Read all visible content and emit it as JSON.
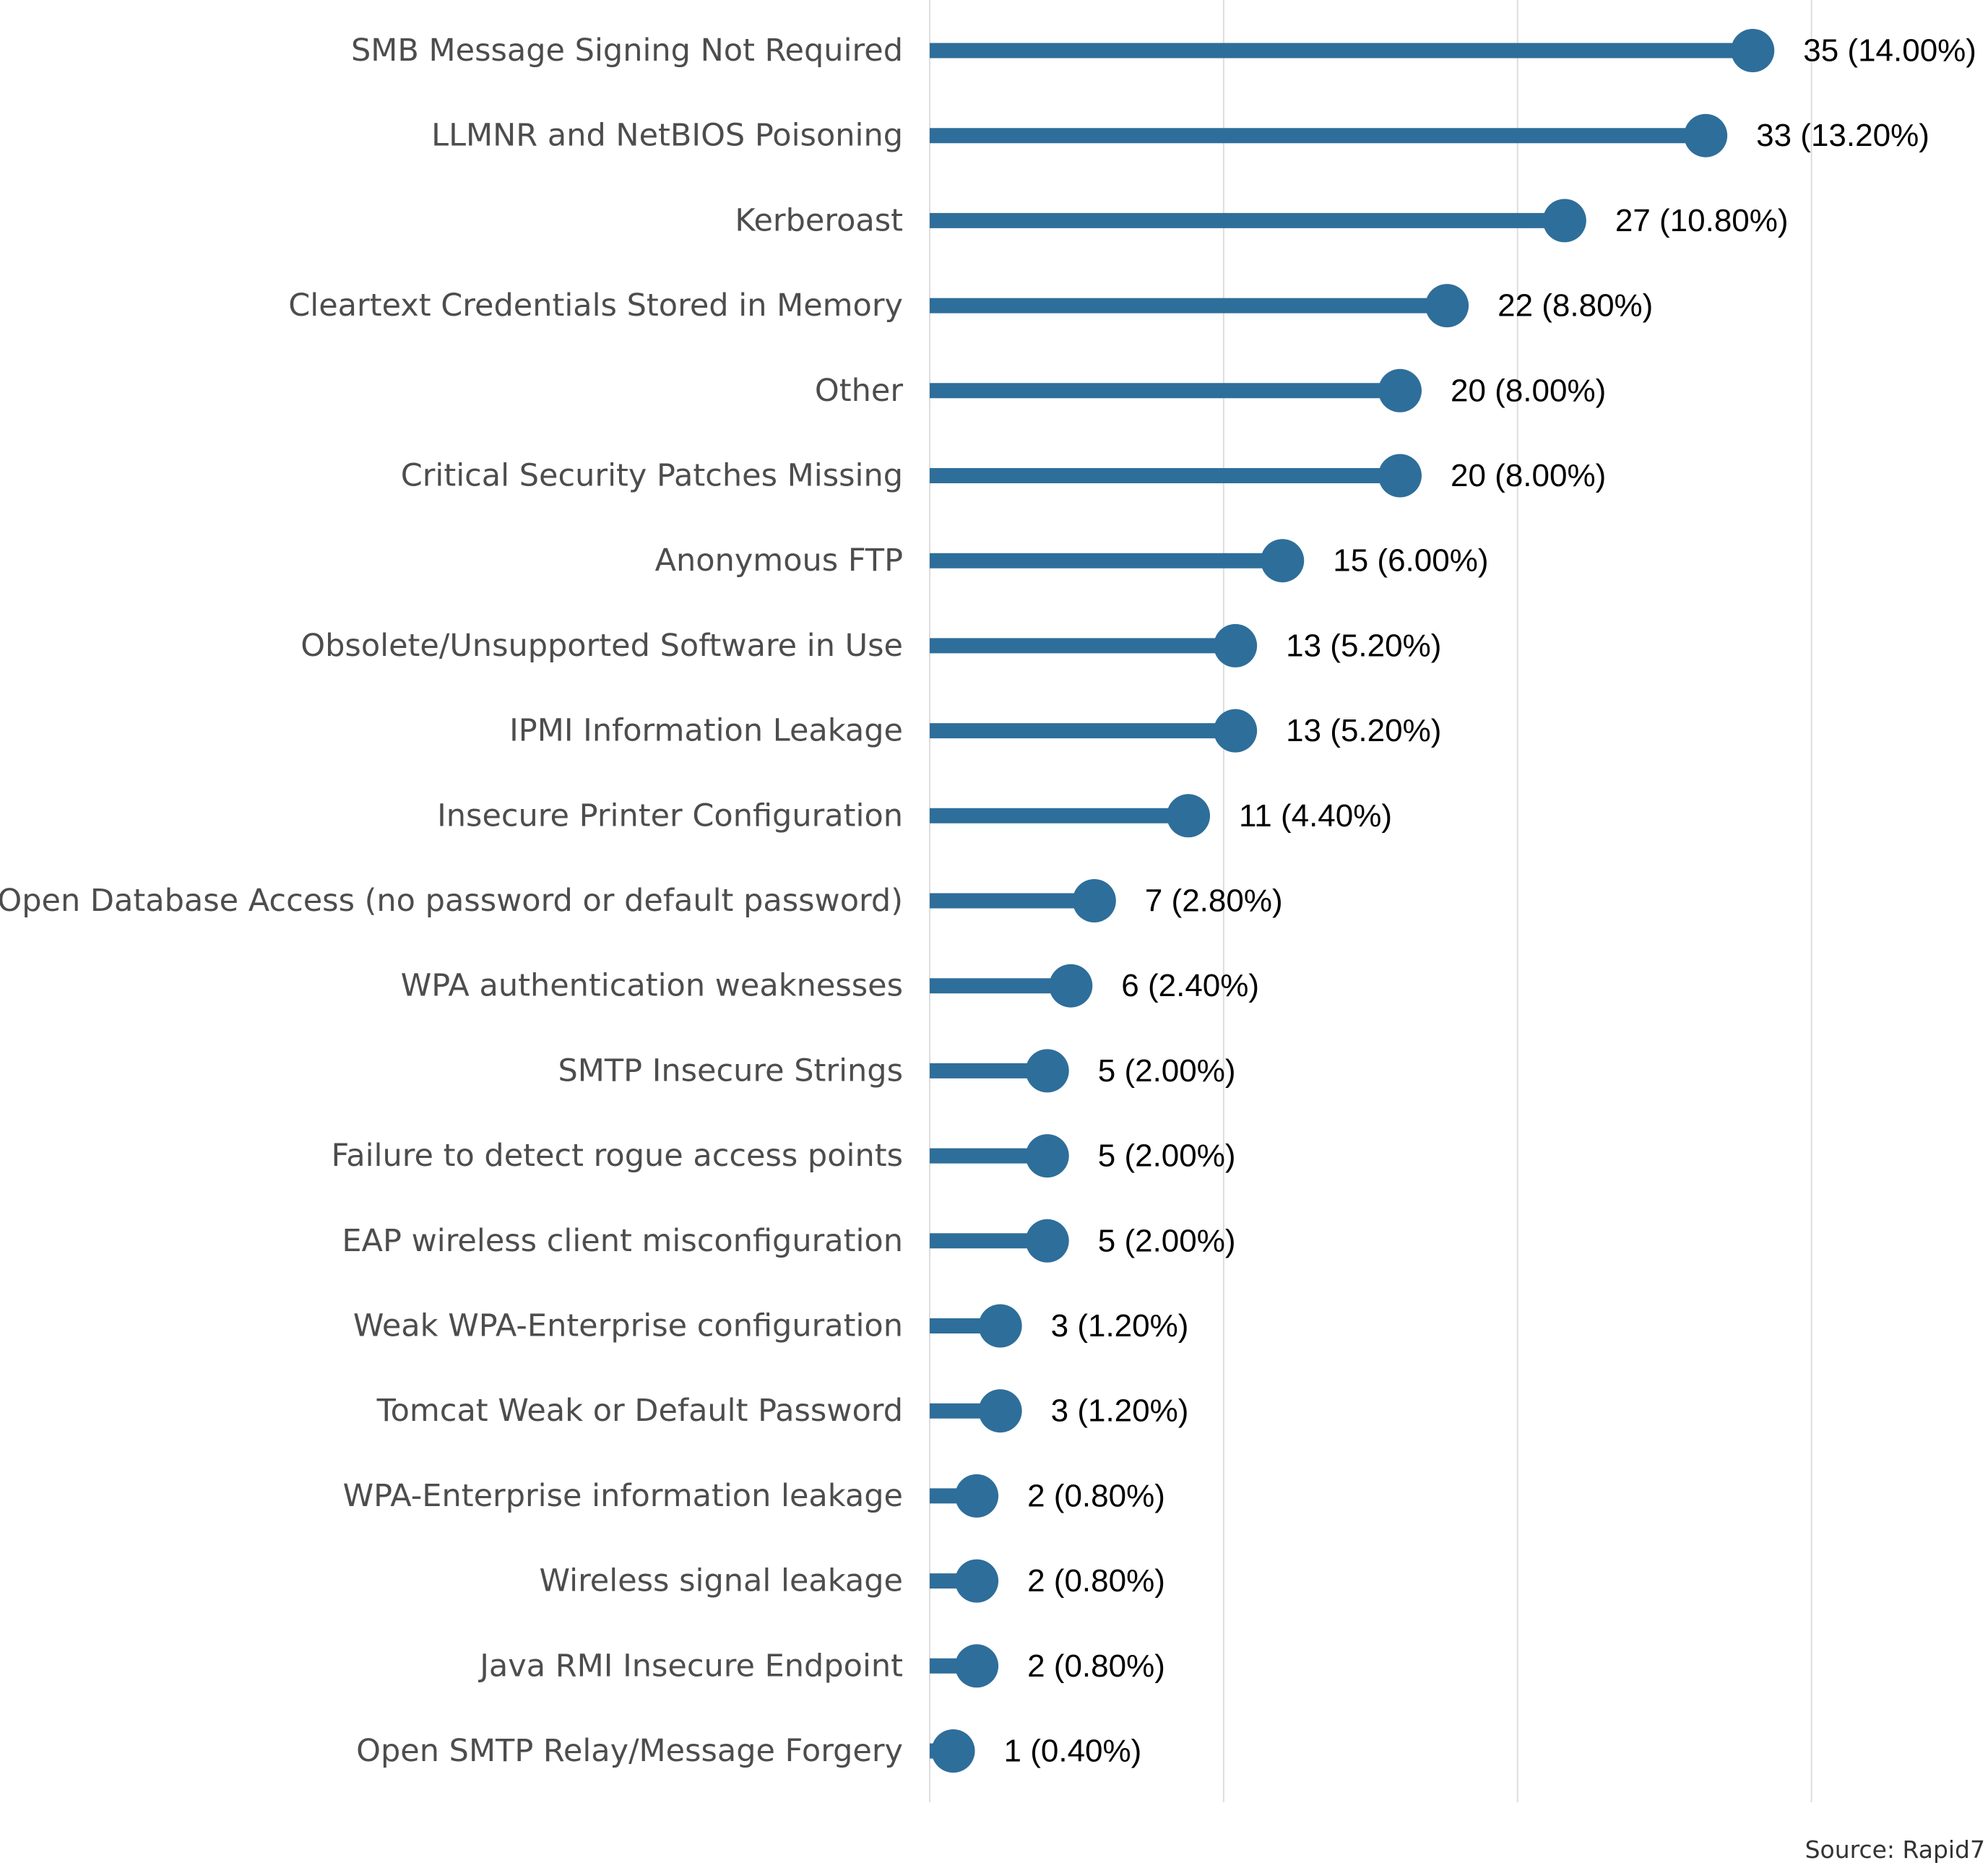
{
  "chart_data": {
    "type": "lollipop",
    "orientation": "horizontal",
    "categories": [
      "SMB Message Signing Not Required",
      "LLMNR and NetBIOS Poisoning",
      "Kerberoast",
      "Cleartext Credentials Stored in Memory",
      "Other",
      "Critical Security Patches Missing",
      "Anonymous FTP",
      "Obsolete/Unsupported Software in Use",
      "IPMI Information Leakage",
      "Insecure Printer Configuration",
      "Open Database Access (no password or default password)",
      "WPA authentication weaknesses",
      "SMTP Insecure Strings",
      "Failure to detect rogue access points",
      "EAP wireless client misconfiguration",
      "Weak WPA-Enterprise configuration",
      "Tomcat Weak or Default Password",
      "WPA-Enterprise information leakage",
      "Wireless signal leakage",
      "Java RMI Insecure Endpoint",
      "Open SMTP Relay/Message Forgery"
    ],
    "values": [
      35,
      33,
      27,
      22,
      20,
      20,
      15,
      13,
      13,
      11,
      7,
      6,
      5,
      5,
      5,
      3,
      3,
      2,
      2,
      2,
      1
    ],
    "data_labels": [
      "35 (14.00%)",
      "33 (13.20%)",
      "27 (10.80%)",
      "22 (8.80%)",
      "20 (8.00%)",
      "20 (8.00%)",
      "15 (6.00%)",
      "13 (5.20%)",
      "13 (5.20%)",
      "11 (4.40%)",
      "7 (2.80%)",
      "6 (2.40%)",
      "5 (2.00%)",
      "5 (2.00%)",
      "5 (2.00%)",
      "3 (1.20%)",
      "3 (1.20%)",
      "2 (0.80%)",
      "2 (0.80%)",
      "2 (0.80%)",
      "1 (0.40%)"
    ],
    "xlim": [
      0,
      40
    ],
    "x_gridlines": [
      0,
      12.5,
      25,
      37.5
    ],
    "grid": true,
    "colors": {
      "series": "#2e6e9a",
      "grid": "#dddddd"
    }
  },
  "source": "Source: Rapid7"
}
